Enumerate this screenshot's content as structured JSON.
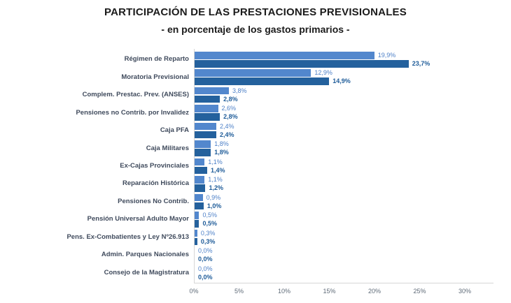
{
  "title": "PARTICIPACIÓN DE LAS PRESTACIONES PREVISIONALES",
  "subtitle": "- en porcentaje de los gastos primarios -",
  "chart_data": {
    "type": "bar",
    "orientation": "horizontal",
    "title": "PARTICIPACIÓN DE LAS PRESTACIONES PREVISIONALES",
    "subtitle": "- en porcentaje de los gastos primarios -",
    "xlabel": "",
    "ylabel": "",
    "xlim": [
      0,
      30
    ],
    "x_ticks": [
      "0%",
      "5%",
      "10%",
      "15%",
      "20%",
      "25%",
      "30%"
    ],
    "x_tick_values": [
      0,
      5,
      10,
      15,
      20,
      25,
      30
    ],
    "grid": false,
    "legend": "none",
    "categories": [
      "Régimen de Reparto",
      "Moratoria Previsional",
      "Complem. Prestac. Prev. (ANSES)",
      "Pensiones no Contrib. por Invalidez",
      "Caja PFA",
      "Caja Militares",
      "Ex-Cajas Provinciales",
      "Reparación Histórica",
      "Pensiones No Contrib.",
      "Pensión Universal Adulto Mayor",
      "Pens. Ex-Combatientes y Ley Nº26.913",
      "Admin. Parques Nacionales",
      "Consejo de la Magistratura"
    ],
    "series": [
      {
        "name": "light_blue_series",
        "color": "#5287cd",
        "label_color": "#4e81c8",
        "values": [
          19.9,
          12.9,
          3.8,
          2.6,
          2.4,
          1.8,
          1.1,
          1.1,
          0.9,
          0.5,
          0.3,
          0.0,
          0.0
        ],
        "labels": [
          "19,9%",
          "12,9%",
          "3,8%",
          "2,6%",
          "2,4%",
          "1,8%",
          "1,1%",
          "1,1%",
          "0,9%",
          "0,5%",
          "0,3%",
          "0,0%",
          "0,0%"
        ]
      },
      {
        "name": "dark_blue_series",
        "color": "#24619d",
        "label_color": "#1f5c99",
        "values": [
          23.7,
          14.9,
          2.8,
          2.8,
          2.4,
          1.8,
          1.4,
          1.2,
          1.0,
          0.5,
          0.3,
          0.0,
          0.0
        ],
        "labels": [
          "23,7%",
          "14,9%",
          "2,8%",
          "2,8%",
          "2,4%",
          "1,8%",
          "1,4%",
          "1,2%",
          "1,0%",
          "0,5%",
          "0,3%",
          "0,0%",
          "0,0%"
        ]
      }
    ]
  },
  "colors": {
    "bar_light": "#5287cd",
    "bar_dark": "#24619d",
    "category_text": "#3f4a5c",
    "tick_text": "#5e6a77",
    "axis_line": "#d6d6d6",
    "title_text": "#1b1b1b"
  }
}
